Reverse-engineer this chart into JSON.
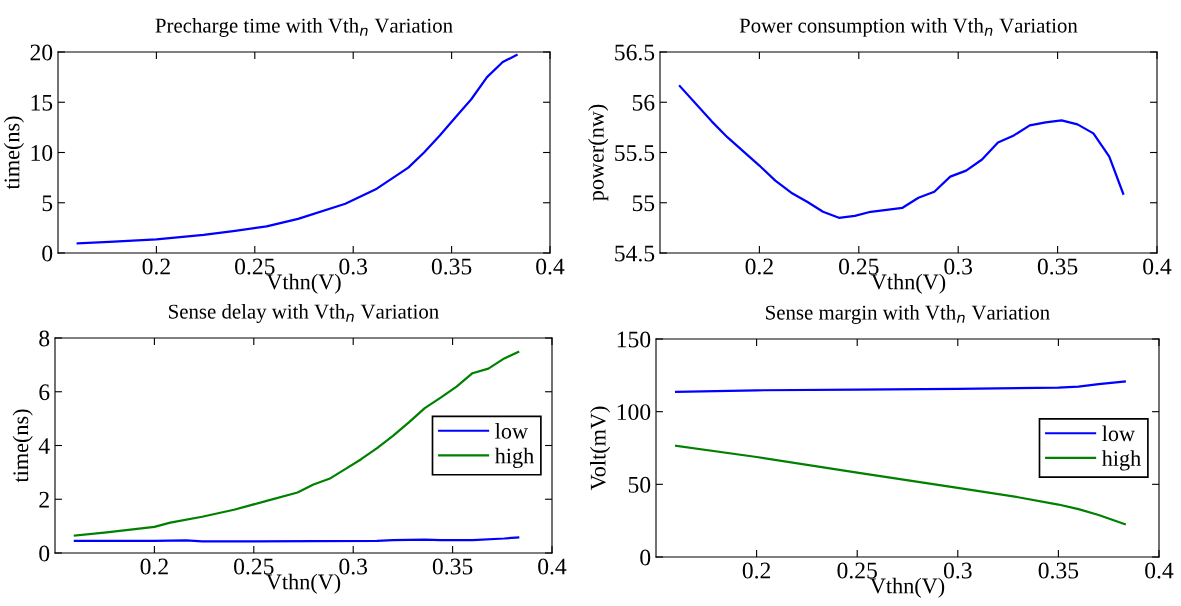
{
  "chart_data": [
    {
      "type": "line",
      "title": "Precharge time with Vth$_{n}$ Variation",
      "xlabel": "Vthn(V)",
      "ylabel": "time(ns)",
      "xlim": [
        0.15,
        0.4
      ],
      "xticks": [
        0.2,
        0.25,
        0.3,
        0.35,
        0.4
      ],
      "ylim": [
        0,
        20
      ],
      "yticks": [
        0,
        5,
        10,
        15,
        20
      ],
      "grid": false,
      "legend": false,
      "series": [
        {
          "color": "#0000ff",
          "x": [
            0.16,
            0.176,
            0.2,
            0.224,
            0.24,
            0.256,
            0.272,
            0.296,
            0.312,
            0.328,
            0.336,
            0.344,
            0.352,
            0.36,
            0.368,
            0.376,
            0.383
          ],
          "values": [
            0.95,
            1.1,
            1.35,
            1.8,
            2.2,
            2.65,
            3.4,
            4.9,
            6.4,
            8.5,
            10,
            11.7,
            13.5,
            15.3,
            17.5,
            19,
            19.7
          ]
        }
      ]
    },
    {
      "type": "line",
      "title": "Power consumption with Vth$_{n}$ Variation",
      "xlabel": "Vthn(V)",
      "ylabel": "power(nw)",
      "xlim": [
        0.15,
        0.4
      ],
      "xticks": [
        0.2,
        0.25,
        0.3,
        0.35,
        0.4
      ],
      "ylim": [
        54.5,
        56.5
      ],
      "yticks": [
        54.5,
        55,
        55.5,
        56,
        56.5
      ],
      "grid": false,
      "legend": false,
      "series": [
        {
          "color": "#0000ff",
          "x": [
            0.16,
            0.176,
            0.184,
            0.2,
            0.208,
            0.216,
            0.224,
            0.232,
            0.24,
            0.248,
            0.256,
            0.264,
            0.272,
            0.28,
            0.288,
            0.296,
            0.304,
            0.312,
            0.32,
            0.328,
            0.336,
            0.344,
            0.352,
            0.36,
            0.368,
            0.376,
            0.383
          ],
          "values": [
            56.16,
            55.81,
            55.65,
            55.37,
            55.22,
            55.1,
            55.01,
            54.91,
            54.85,
            54.87,
            54.91,
            54.93,
            54.95,
            55.05,
            55.11,
            55.26,
            55.32,
            55.43,
            55.6,
            55.67,
            55.77,
            55.8,
            55.82,
            55.78,
            55.69,
            55.46,
            55.09
          ]
        }
      ]
    },
    {
      "type": "line",
      "title": "Sense delay with Vth$_{n}$ Variation",
      "xlabel": "Vthn(V)",
      "ylabel": "time(ns)",
      "xlim": [
        0.15,
        0.4
      ],
      "xticks": [
        0.2,
        0.25,
        0.3,
        0.35,
        0.4
      ],
      "ylim": [
        0,
        8
      ],
      "yticks": [
        0,
        2,
        4,
        6,
        8
      ],
      "grid": false,
      "legend": "right",
      "series": [
        {
          "name": "low",
          "color": "#0000ff",
          "x": [
            0.16,
            0.2,
            0.216,
            0.224,
            0.312,
            0.32,
            0.336,
            0.344,
            0.36,
            0.376,
            0.383
          ],
          "values": [
            0.45,
            0.45,
            0.47,
            0.43,
            0.45,
            0.48,
            0.5,
            0.48,
            0.48,
            0.54,
            0.58
          ]
        },
        {
          "name": "high",
          "color": "#008000",
          "x": [
            0.16,
            0.176,
            0.2,
            0.208,
            0.224,
            0.24,
            0.256,
            0.272,
            0.28,
            0.288,
            0.296,
            0.304,
            0.312,
            0.32,
            0.328,
            0.336,
            0.344,
            0.352,
            0.36,
            0.368,
            0.376,
            0.383
          ],
          "values": [
            0.65,
            0.77,
            0.97,
            1.13,
            1.35,
            1.61,
            1.93,
            2.25,
            2.55,
            2.76,
            3.12,
            3.49,
            3.9,
            4.36,
            4.86,
            5.39,
            5.78,
            6.19,
            6.69,
            6.86,
            7.24,
            7.48
          ]
        }
      ]
    },
    {
      "type": "line",
      "title": "Sense margin with Vth$_{n}$ Variation",
      "xlabel": "Vthn(V)",
      "ylabel": "Volt(mV)",
      "xlim": [
        0.15,
        0.4
      ],
      "xticks": [
        0.2,
        0.25,
        0.3,
        0.35,
        0.4
      ],
      "ylim": [
        0,
        150
      ],
      "yticks": [
        0,
        50,
        100,
        150
      ],
      "grid": false,
      "legend": "right",
      "series": [
        {
          "name": "low",
          "color": "#0000ff",
          "x": [
            0.16,
            0.2,
            0.25,
            0.3,
            0.35,
            0.36,
            0.37,
            0.383
          ],
          "values": [
            113.6,
            114.7,
            115.2,
            115.7,
            116.5,
            117.3,
            118.9,
            120.8
          ]
        },
        {
          "name": "high",
          "color": "#008000",
          "x": [
            0.16,
            0.2,
            0.25,
            0.3,
            0.33,
            0.35,
            0.36,
            0.37,
            0.383
          ],
          "values": [
            76.5,
            68.8,
            58.1,
            47.5,
            41.1,
            36.1,
            32.9,
            28.9,
            22.6
          ]
        }
      ]
    }
  ]
}
